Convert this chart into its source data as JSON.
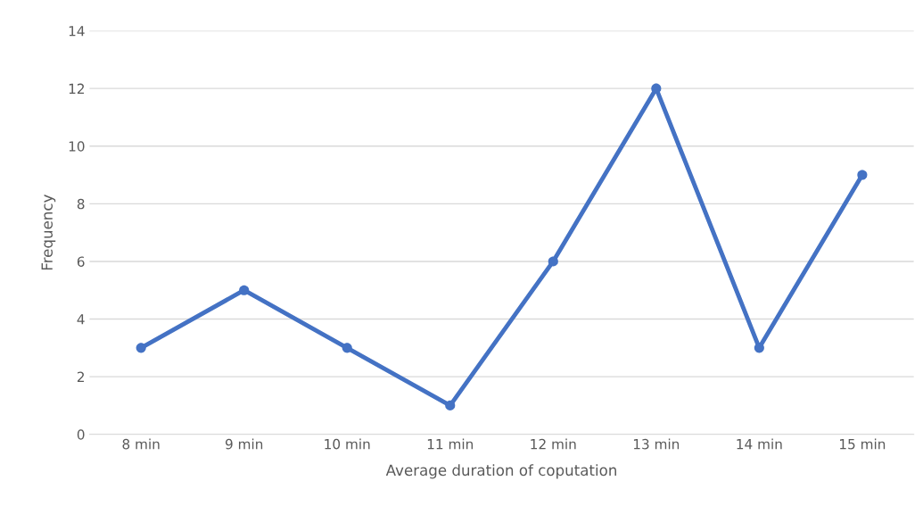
{
  "chart_data": {
    "type": "line",
    "xlabel": "Average duration of coputation",
    "ylabel": "Frequency",
    "categories": [
      "8 min",
      "9 min",
      "10 min",
      "11 min",
      "12 min",
      "13 min",
      "14 min",
      "15 min"
    ],
    "series": [
      {
        "color": "#4472c4",
        "values": [
          3,
          5,
          3,
          1,
          6,
          12,
          3,
          9
        ]
      }
    ],
    "ylim": [
      0,
      14
    ],
    "yticks": [
      0,
      2,
      4,
      6,
      8,
      10,
      12,
      14
    ],
    "grid": "y",
    "marker": "circle",
    "line_style": "solid"
  }
}
